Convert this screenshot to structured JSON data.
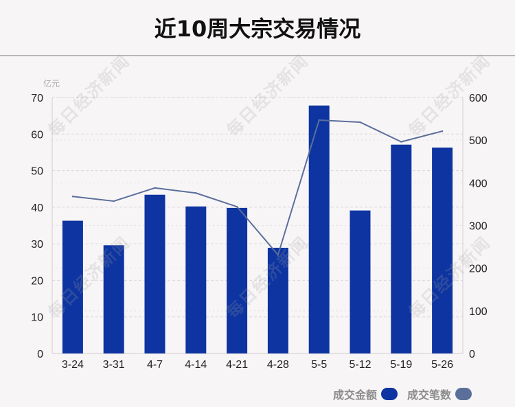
{
  "title": "近10周大宗交易情况",
  "colors": {
    "bar": "#0d34a0",
    "line": "#5b6f9b",
    "grid": "#d9d6d9",
    "axis": "#cfcccf"
  },
  "watermark_text": "每日经济新闻",
  "legend": [
    {
      "label": "成交金额",
      "color": "#0d34a0"
    },
    {
      "label": "成交笔数",
      "color": "#5b6f9b"
    }
  ],
  "chart_data": {
    "type": "bar",
    "categories": [
      "3-24",
      "3-31",
      "4-7",
      "4-14",
      "4-21",
      "4-28",
      "5-5",
      "5-12",
      "5-19",
      "5-26"
    ],
    "series": [
      {
        "name": "成交金额",
        "type": "bar",
        "axis": "left",
        "values": [
          36.3,
          29.6,
          43.4,
          40.2,
          39.8,
          28.9,
          67.8,
          39.1,
          57.1,
          56.3
        ]
      },
      {
        "name": "成交笔数",
        "type": "line",
        "axis": "right",
        "values": [
          368,
          357,
          388,
          376,
          344,
          231,
          547,
          542,
          496,
          521
        ]
      }
    ],
    "y_left": {
      "unit": "亿元",
      "lim": [
        0,
        70
      ],
      "ticks": [
        0,
        10,
        20,
        30,
        40,
        50,
        60,
        70
      ]
    },
    "y_right": {
      "lim": [
        0,
        600
      ],
      "ticks": [
        0,
        100,
        200,
        300,
        400,
        500,
        600
      ]
    },
    "grid": true,
    "legend_position": "bottom-right"
  }
}
